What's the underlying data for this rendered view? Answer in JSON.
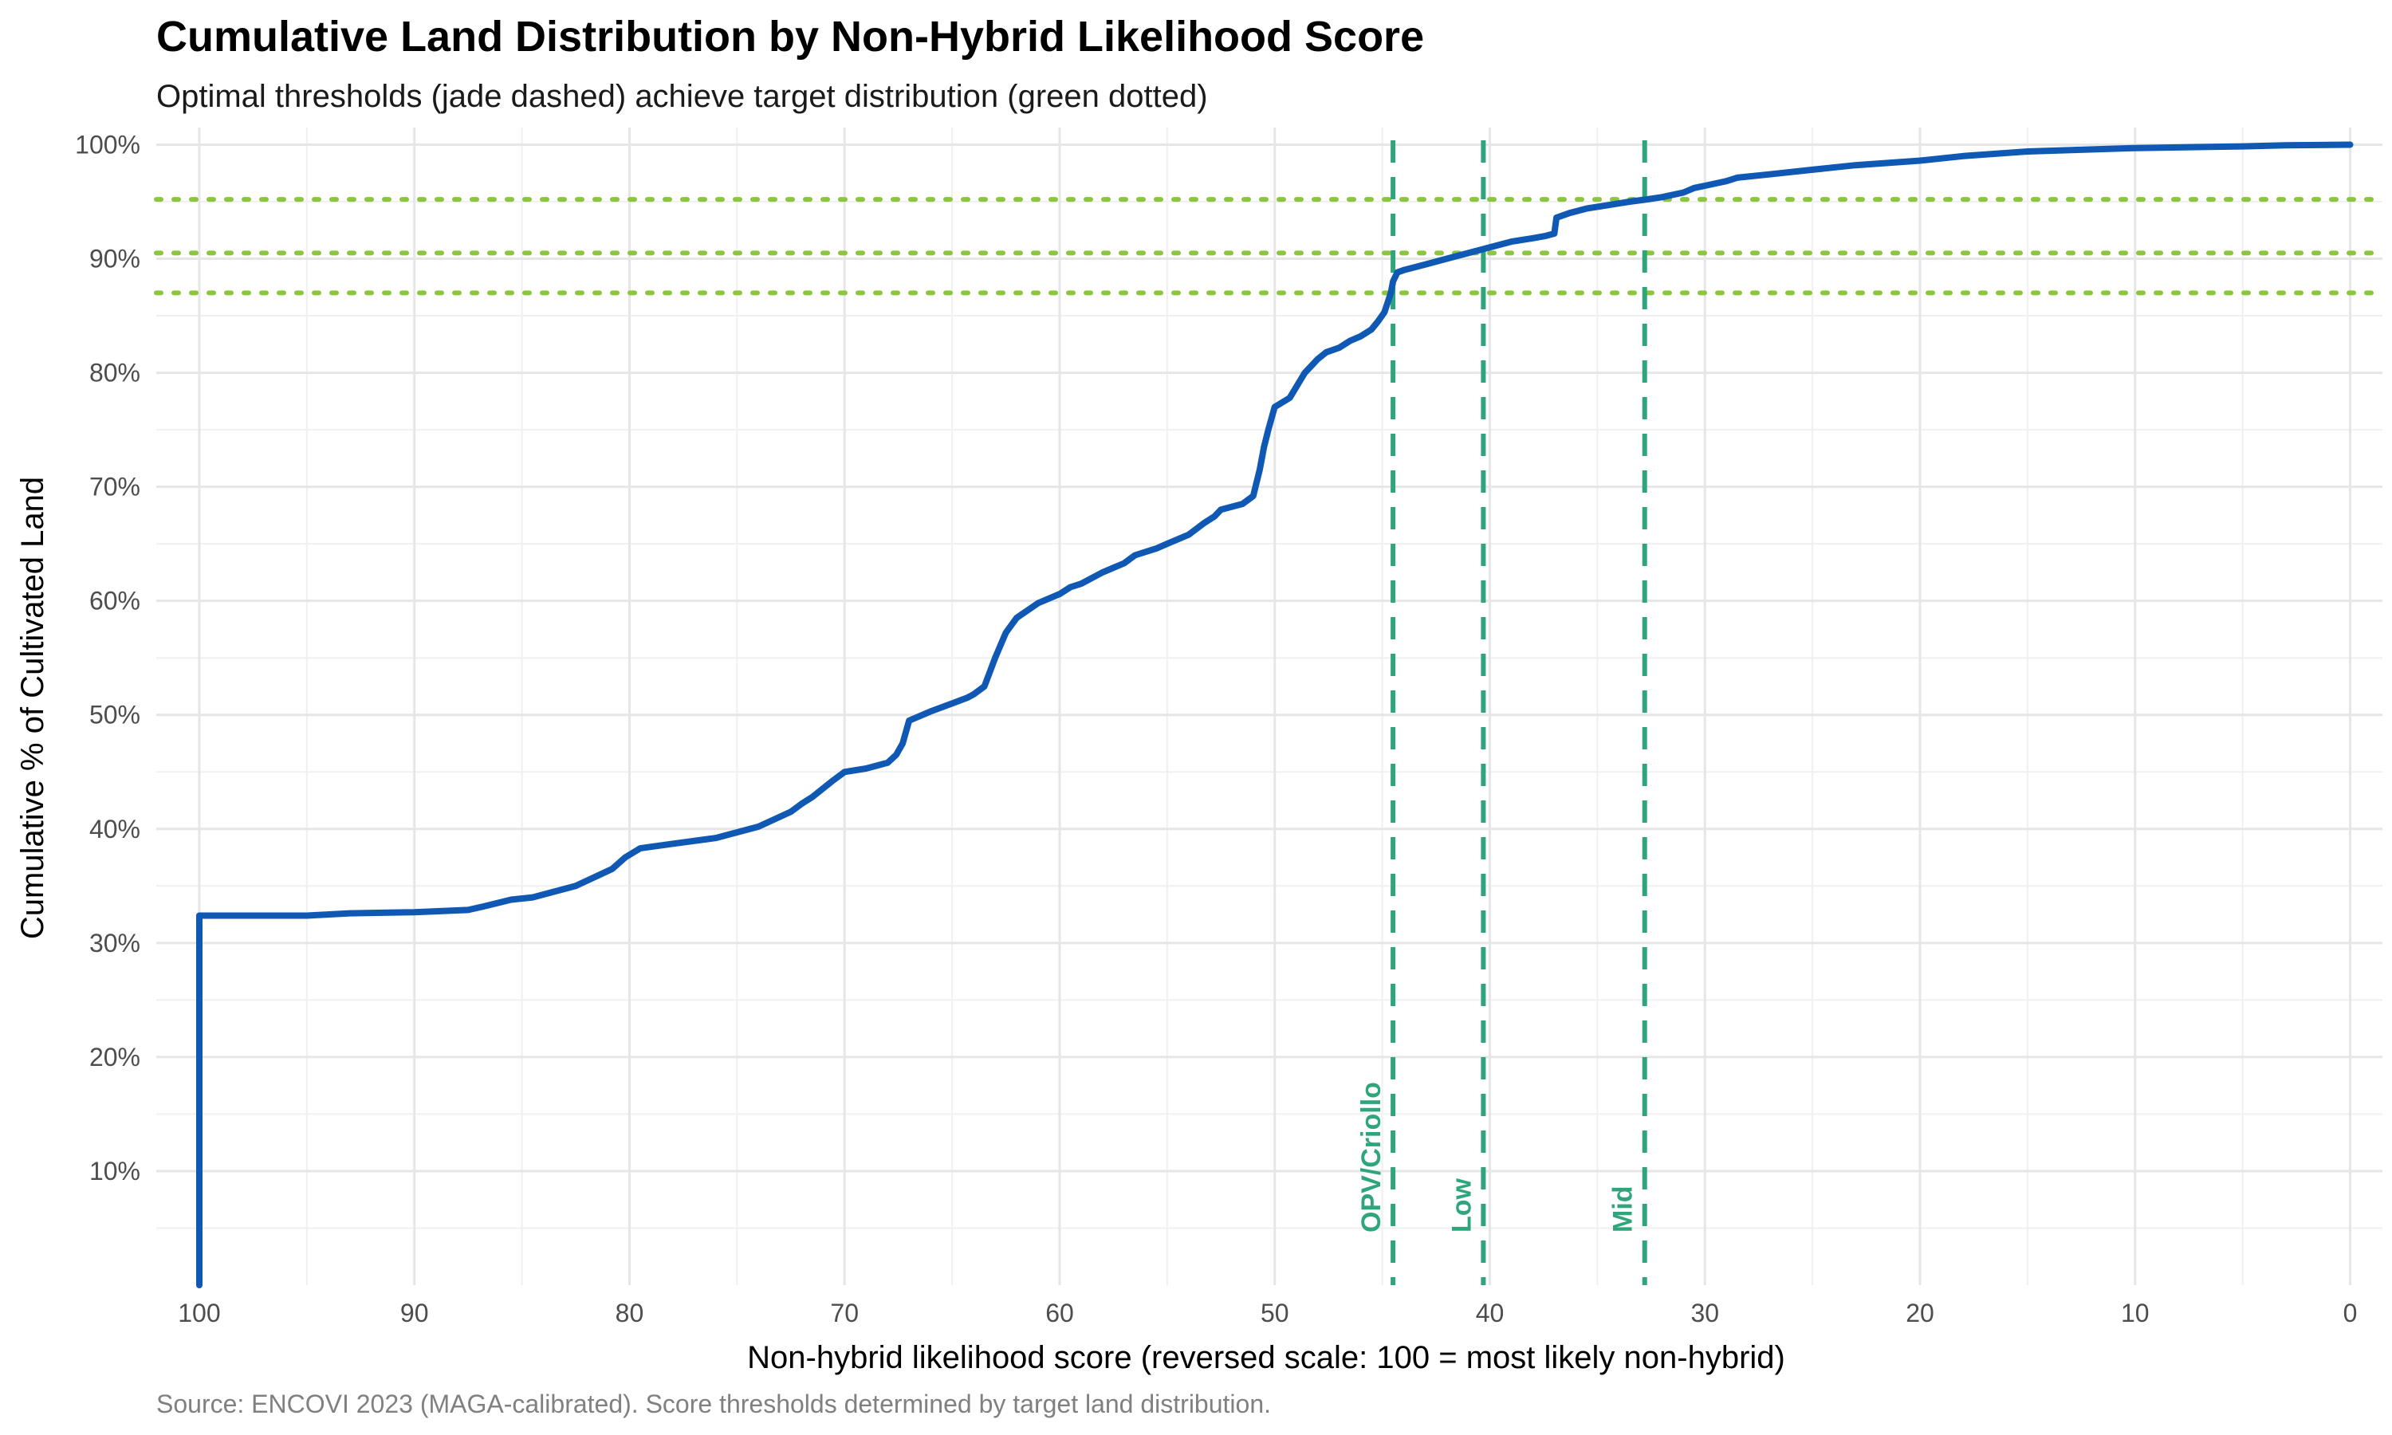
{
  "chart_data": {
    "type": "line",
    "title": "Cumulative Land Distribution by Non-Hybrid Likelihood Score",
    "subtitle": "Optimal thresholds (jade dashed) achieve target distribution (green dotted)",
    "xlabel": "Non-hybrid likelihood score (reversed scale: 100 = most likely non-hybrid)",
    "ylabel": "Cumulative % of Cultivated Land",
    "caption": "Source: ENCOVI 2023 (MAGA-calibrated). Score thresholds determined by target land distribution.",
    "x_reversed": true,
    "xlim": [
      102,
      -1.5
    ],
    "ylim": [
      0,
      101.5
    ],
    "x_ticks": [
      100,
      90,
      80,
      70,
      60,
      50,
      40,
      30,
      20,
      10,
      0
    ],
    "x_tick_labels": [
      "100",
      "90",
      "80",
      "70",
      "60",
      "50",
      "40",
      "30",
      "20",
      "10",
      "0"
    ],
    "y_ticks": [
      10,
      20,
      30,
      40,
      50,
      60,
      70,
      80,
      90,
      100
    ],
    "y_tick_labels": [
      "10%",
      "20%",
      "30%",
      "40%",
      "50%",
      "60%",
      "70%",
      "80%",
      "90%",
      "100%"
    ],
    "grid": true,
    "line_color": "#0f58b4",
    "threshold_color": "#2ea57a",
    "target_color": "#8cc63e",
    "series": [
      {
        "x": [
          100,
          100,
          99.5,
          95,
          93,
          90,
          87.5,
          86.8,
          85.5,
          84.5,
          82.5,
          80.8,
          80.2,
          79.5,
          78,
          76,
          74,
          72.5,
          72,
          71.5,
          70.5,
          70,
          69,
          68,
          67.6,
          67.3,
          67,
          66,
          65,
          64.3,
          64,
          63.5,
          63,
          62.5,
          62,
          61,
          60,
          59.5,
          59,
          58,
          57,
          56.5,
          55.5,
          55,
          54,
          53.3,
          52.8,
          52.5,
          51.5,
          51,
          50.7,
          50.5,
          50.3,
          50,
          49.3,
          48.6,
          48,
          47.6,
          47,
          46.5,
          46,
          45.5,
          45.2,
          44.9,
          44.6,
          44.5,
          44.3,
          44,
          43,
          42,
          41,
          40,
          39,
          38,
          37.4,
          37,
          36.9,
          36.3,
          35.5,
          34.5,
          33.5,
          32.7,
          32,
          31,
          30.5,
          30,
          29,
          28.5,
          27,
          25,
          23,
          20,
          18,
          15,
          10,
          5,
          3,
          0
        ],
        "y": [
          0,
          32.4,
          32.4,
          32.4,
          32.6,
          32.7,
          32.9,
          33.2,
          33.8,
          34.0,
          35.0,
          36.5,
          37.5,
          38.3,
          38.7,
          39.2,
          40.2,
          41.5,
          42.2,
          42.8,
          44.3,
          45.0,
          45.3,
          45.8,
          46.5,
          47.5,
          49.5,
          50.3,
          51.0,
          51.5,
          51.8,
          52.5,
          55.0,
          57.2,
          58.5,
          59.8,
          60.6,
          61.2,
          61.5,
          62.5,
          63.3,
          64.0,
          64.6,
          65.0,
          65.8,
          66.8,
          67.4,
          68.0,
          68.5,
          69.2,
          71.5,
          73.5,
          75.0,
          77.0,
          77.8,
          80.0,
          81.2,
          81.8,
          82.2,
          82.8,
          83.2,
          83.8,
          84.5,
          85.3,
          87.0,
          88.0,
          88.8,
          89.0,
          89.5,
          90.0,
          90.5,
          91.0,
          91.5,
          91.8,
          92.0,
          92.2,
          93.6,
          94.0,
          94.4,
          94.7,
          95.0,
          95.2,
          95.4,
          95.8,
          96.2,
          96.4,
          96.8,
          97.1,
          97.4,
          97.8,
          98.2,
          98.6,
          99.0,
          99.4,
          99.7,
          99.85,
          99.95,
          100
        ]
      }
    ],
    "thresholds": [
      {
        "label": "OPV/Criollo",
        "x": 44.5
      },
      {
        "label": "Low",
        "x": 40.3
      },
      {
        "label": "Mid",
        "x": 32.8
      }
    ],
    "targets": [
      87.0,
      90.5,
      95.2
    ]
  }
}
